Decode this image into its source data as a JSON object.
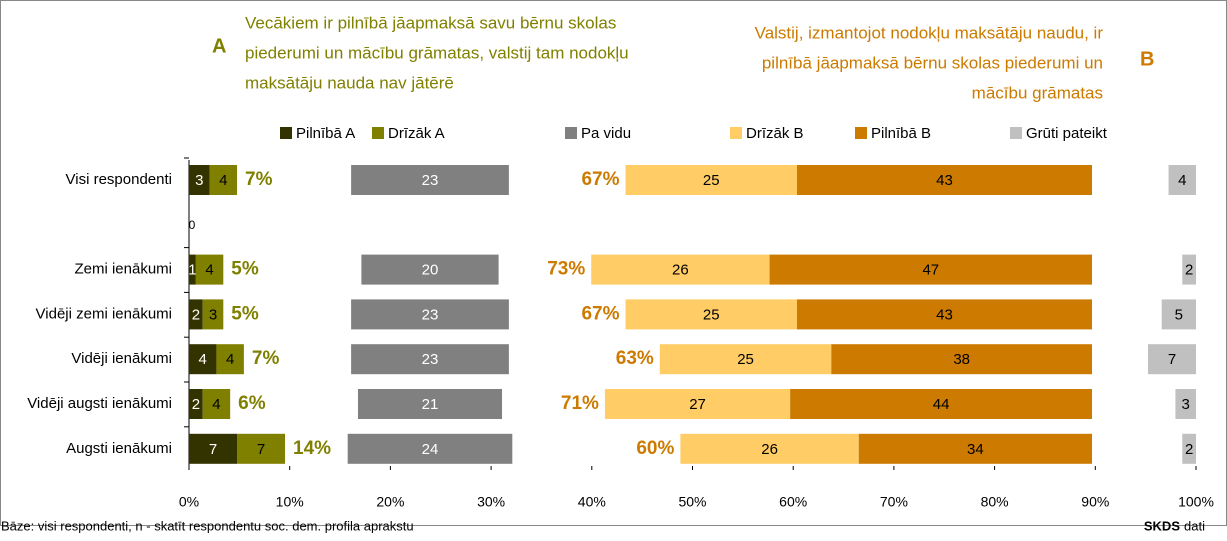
{
  "chart_data": {
    "type": "bar",
    "header": {
      "label_a": "A",
      "text_a": [
        "Vecākiem ir pilnībā jāapmaksā savu bērnu skolas",
        "piederumi un mācību grāmatas, valstij tam nodokļu",
        "maksātāju nauda nav jātērē"
      ],
      "label_b": "B",
      "text_b": [
        "Valstij, izmantojot nodokļu maksātāju naudu, ir",
        "pilnībā jāapmaksā bērnu skolas piederumi un",
        "mācību grāmatas"
      ]
    },
    "categories": [
      "Visi respondenti",
      null,
      "Zemi ienākumi",
      "Vidēji zemi ienākumi",
      "Vidēji ienākumi",
      "Vidēji augsti ienākumi",
      "Augsti ienākumi"
    ],
    "series": [
      {
        "name": "Pilnībā A",
        "color": "#333300",
        "group": "a",
        "values": [
          3,
          0,
          1,
          2,
          4,
          2,
          7
        ]
      },
      {
        "name": "Drīzāk A",
        "color": "#808000",
        "group": "a",
        "values": [
          4,
          null,
          4,
          3,
          4,
          4,
          7
        ]
      },
      {
        "name": "Pa vidu",
        "color": "#808080",
        "group": "mid",
        "values": [
          23,
          null,
          20,
          23,
          23,
          21,
          24
        ]
      },
      {
        "name": "Drīzāk B",
        "color": "#ffcc66",
        "group": "b",
        "values": [
          25,
          null,
          26,
          25,
          25,
          27,
          26
        ]
      },
      {
        "name": "Pilnībā B",
        "color": "#cc7a00",
        "group": "b",
        "values": [
          43,
          null,
          47,
          43,
          38,
          44,
          34
        ]
      },
      {
        "name": "Grūti pateikt",
        "color": "#c0c0c0",
        "group": "end",
        "values": [
          4,
          null,
          2,
          5,
          7,
          3,
          2
        ]
      }
    ],
    "totals_a": {
      "color": "#808000",
      "values": [
        7,
        null,
        5,
        5,
        7,
        6,
        14
      ],
      "value_labels": [
        "7%",
        null,
        "5%",
        "5%",
        "7%",
        "6%",
        "14%"
      ]
    },
    "totals_b": {
      "color": "#cc7a00",
      "values": [
        67,
        null,
        73,
        67,
        63,
        71,
        60
      ],
      "value_labels": [
        "67%",
        null,
        "73%",
        "67%",
        "63%",
        "71%",
        "60%"
      ]
    },
    "xlim": [
      0,
      100
    ],
    "xticks": [
      {
        "value": 0,
        "label": "0%"
      },
      {
        "value": 10,
        "label": "10%"
      },
      {
        "value": 20,
        "label": "20%"
      },
      {
        "value": 30,
        "label": "30%"
      },
      {
        "value": 40,
        "label": "40%"
      },
      {
        "value": 50,
        "label": "50%"
      },
      {
        "value": 60,
        "label": "60%"
      },
      {
        "value": 70,
        "label": "70%"
      },
      {
        "value": 80,
        "label": "80%"
      },
      {
        "value": 90,
        "label": "90%"
      },
      {
        "value": 100,
        "label": "100%"
      }
    ],
    "footer": {
      "note": "Bāze: visi respondenti, n - skatīt respondentu soc. dem. profila aprakstu",
      "source_bold": "SKDS",
      "source": "dati"
    }
  }
}
